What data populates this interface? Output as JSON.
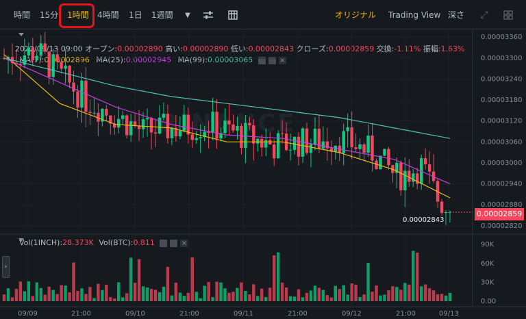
{
  "toolbar": {
    "intervals": [
      "時間",
      "15分",
      "1時間",
      "4時間",
      "1日",
      "1週間"
    ],
    "active_interval": "1時間",
    "views": [
      "オリジナル",
      "Trading View",
      "深さ"
    ]
  },
  "ohlc": {
    "date": "2022/09/13 09:00",
    "open_label": "オープン:",
    "open": "0.00002890",
    "high_label": "高い:",
    "high": "0.00002890",
    "low_label": "低い:",
    "low": "0.00002843",
    "close_label": "クローズ:",
    "close": "0.00002859",
    "change_label": "交換:",
    "change": "-1.11%",
    "amplitude_label": "振幅:",
    "amplitude": "1.63%"
  },
  "ma": {
    "ma7_label": "MA(7):",
    "ma7": "0.00002896",
    "ma25_label": "MA(25):",
    "ma25": "0.00002945",
    "ma99_label": "MA(99):",
    "ma99": "0.00003065"
  },
  "volume": {
    "vol1_label": "Vol(1INCH):",
    "vol1": "28.373K",
    "vol2_label": "Vol(BTC):",
    "vol2": "0.811"
  },
  "current_price": "0.00002859",
  "last_low_label": "0.00002843",
  "watermark": "BINANCE",
  "price_axis": [
    "0.00003360",
    "0.00003300",
    "0.00003240",
    "0.00003180",
    "0.00003120",
    "0.00003060",
    "0.00003000",
    "0.00002940",
    "0.00002880",
    "0.00002820"
  ],
  "volume_axis": [
    "90K",
    "60K",
    "30K",
    "0.00"
  ],
  "time_axis": [
    "09/09",
    "21:00",
    "09/10",
    "21:00",
    "09/11",
    "21:00",
    "09/12",
    "21:00",
    "09/13"
  ],
  "colors": {
    "up": "#0ecb81",
    "down": "#f6465d",
    "ma7": "#f0b90b",
    "ma25": "#c83ee0",
    "ma99": "#4fc2b6",
    "accent": "#f0b90b"
  },
  "chart_data": {
    "type": "candlestick",
    "x": [
      "09/09",
      "21:00",
      "09/10",
      "21:00",
      "09/11",
      "21:00",
      "09/12",
      "21:00",
      "09/13"
    ],
    "y_axis_ticks": [
      3.36e-05,
      3.3e-05,
      3.24e-05,
      3.18e-05,
      3.12e-05,
      3.06e-05,
      3e-05,
      2.94e-05,
      2.88e-05,
      2.82e-05
    ],
    "series": [
      {
        "name": "MA(7)",
        "values": [
          3.31e-05,
          3.17e-05,
          3.11e-05,
          3.1e-05,
          3.06e-05,
          3.06e-05,
          3.03e-05,
          2.98e-05,
          2.9e-05
        ]
      },
      {
        "name": "MA(25)",
        "values": [
          3.3e-05,
          3.23e-05,
          3.16e-05,
          3.11e-05,
          3.08e-05,
          3.07e-05,
          3.04e-05,
          3.01e-05,
          2.94e-05
        ]
      },
      {
        "name": "MA(99)",
        "values": [
          3.3e-05,
          3.26e-05,
          3.22e-05,
          3.19e-05,
          3.17e-05,
          3.15e-05,
          3.13e-05,
          3.1e-05,
          3.07e-05
        ]
      }
    ],
    "ylim": [
      2.8e-05,
      3.38e-05
    ]
  }
}
